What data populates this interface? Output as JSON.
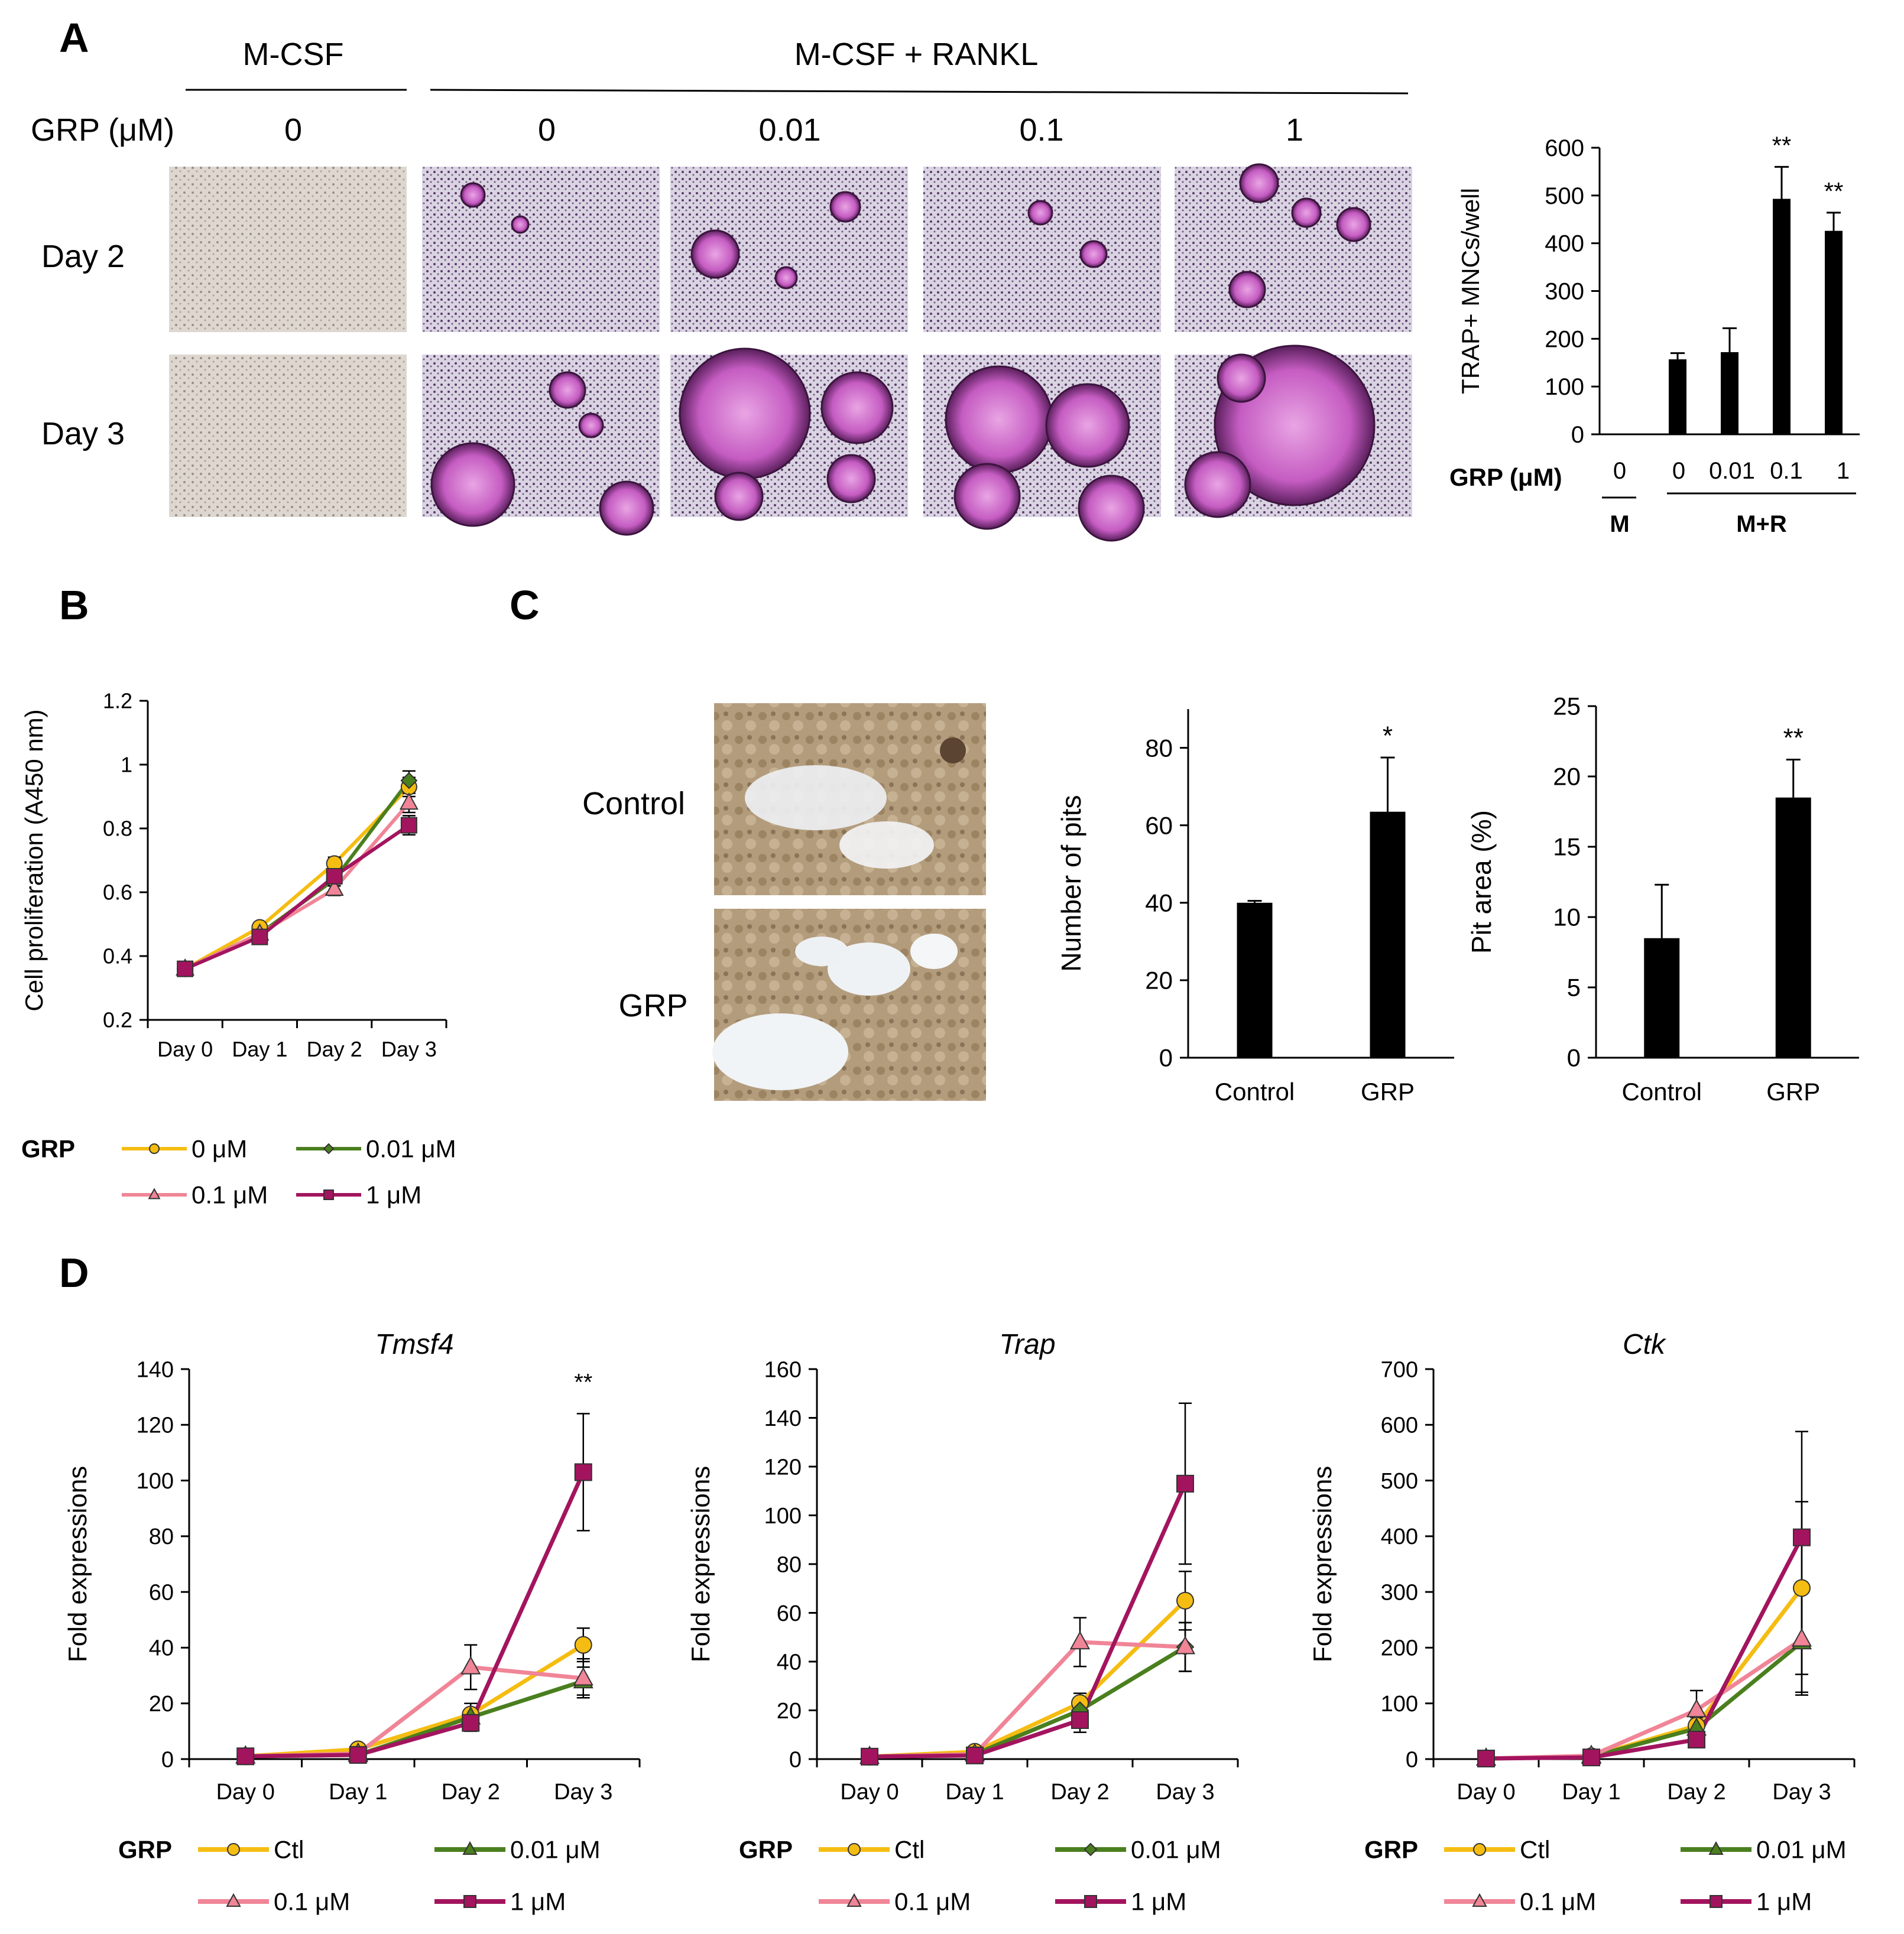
{
  "panels": {
    "A": "A",
    "B": "B",
    "C": "C",
    "D": "D"
  },
  "colors": {
    "ctl": "#f5bd12",
    "g001": "#4a7f1e",
    "g01": "#f08597",
    "g1": "#a3145e",
    "bar": "#000000",
    "photo_bg": "#ede6dc"
  },
  "panel_a": {
    "header_mcsf": "M-CSF",
    "header_mcsf_rankl": "M-CSF  + RANKL",
    "grp_label": "GRP (μM)",
    "concentrations": [
      "0",
      "0",
      "0.01",
      "0.1",
      "1"
    ],
    "rows": [
      "Day 2",
      "Day 3"
    ]
  },
  "panel_c": {
    "rows": [
      "Control",
      "GRP"
    ]
  },
  "chart_data": [
    {
      "id": "trap-mncs",
      "type": "bar",
      "categories": [
        "0",
        "0",
        "0.01",
        "0.1",
        "1"
      ],
      "values": [
        0,
        157,
        172,
        493,
        426
      ],
      "errors": [
        0,
        13,
        50,
        67,
        38
      ],
      "significance": [
        "",
        "",
        "",
        "**",
        "**"
      ],
      "ylabel": "TRAP+ MNCs/well",
      "xlabel": "GRP (μM)",
      "ylim": [
        0,
        600
      ],
      "yticks": [
        0,
        100,
        200,
        300,
        400,
        500,
        600
      ],
      "groups": [
        "M",
        "M+R"
      ]
    },
    {
      "id": "proliferation",
      "type": "line",
      "x": [
        "Day 0",
        "Day 1",
        "Day 2",
        "Day 3"
      ],
      "ylabel": "Cell proliferation (A450 nm)",
      "ylim": [
        0.2,
        1.2
      ],
      "yticks": [
        "0.2",
        "0.4",
        "0.6",
        "0.8",
        "1",
        "1.2"
      ],
      "legend_title": "GRP",
      "series": [
        {
          "name": "0 μM",
          "key": "ctl",
          "marker": "circle",
          "values": [
            0.36,
            0.49,
            0.69,
            0.93
          ],
          "errors": [
            0.01,
            0.01,
            0.02,
            0.03
          ]
        },
        {
          "name": "0.01 μM",
          "key": "g001",
          "marker": "diamond",
          "values": [
            0.36,
            0.47,
            0.64,
            0.95
          ],
          "errors": [
            0.01,
            0.01,
            0.02,
            0.03
          ]
        },
        {
          "name": "0.1 μM",
          "key": "g01",
          "marker": "triangle",
          "values": [
            0.36,
            0.47,
            0.61,
            0.88
          ],
          "errors": [
            0.01,
            0.01,
            0.02,
            0.03
          ]
        },
        {
          "name": "1 μM",
          "key": "g1",
          "marker": "square",
          "values": [
            0.36,
            0.46,
            0.65,
            0.81
          ],
          "errors": [
            0.01,
            0.01,
            0.02,
            0.03
          ]
        }
      ]
    },
    {
      "id": "pits",
      "type": "bar",
      "categories": [
        "Control",
        "GRP"
      ],
      "values": [
        40,
        63.5
      ],
      "errors": [
        0.5,
        14
      ],
      "significance": [
        "",
        "*"
      ],
      "ylabel": "Number  of pits",
      "ylim": [
        0,
        90
      ],
      "yticks": [
        0,
        20,
        40,
        60,
        80
      ]
    },
    {
      "id": "pit-area",
      "type": "bar",
      "categories": [
        "Control",
        "GRP"
      ],
      "values": [
        8.5,
        18.5
      ],
      "errors": [
        3.8,
        2.7
      ],
      "significance": [
        "",
        "**"
      ],
      "ylabel": "Pit area (%)",
      "ylim": [
        0,
        25
      ],
      "yticks": [
        0,
        5,
        10,
        15,
        20,
        25
      ]
    },
    {
      "id": "tmsf4",
      "type": "line",
      "title": "Tmsf4",
      "x": [
        "Day 0",
        "Day 1",
        "Day 2",
        "Day 3"
      ],
      "ylabel": "Fold expressions",
      "ylim": [
        0,
        140
      ],
      "yticks": [
        0,
        20,
        40,
        60,
        80,
        100,
        120,
        140
      ],
      "significance": "**",
      "legend_title": "GRP",
      "series": [
        {
          "name": "Ctl",
          "key": "ctl",
          "marker": "circle",
          "values": [
            1,
            3.5,
            16,
            41
          ],
          "errors": [
            0,
            0.5,
            4,
            6
          ]
        },
        {
          "name": "0.01 μM",
          "key": "g001",
          "marker": "triangle",
          "values": [
            1,
            1.5,
            15,
            28
          ],
          "errors": [
            0,
            0.3,
            3,
            5
          ]
        },
        {
          "name": "0.1 μM",
          "key": "g01",
          "marker": "triangle",
          "values": [
            1,
            2,
            33,
            29
          ],
          "errors": [
            0,
            0.3,
            8,
            7
          ]
        },
        {
          "name": "1 μM",
          "key": "g1",
          "marker": "square",
          "values": [
            1,
            1.5,
            13,
            103
          ],
          "errors": [
            0,
            0.3,
            3,
            21
          ]
        }
      ]
    },
    {
      "id": "trap",
      "type": "line",
      "title": "Trap",
      "x": [
        "Day 0",
        "Day 1",
        "Day 2",
        "Day 3"
      ],
      "ylabel": "Fold expressions",
      "ylim": [
        0,
        160
      ],
      "yticks": [
        0,
        20,
        40,
        60,
        80,
        100,
        120,
        140,
        160
      ],
      "legend_title": "GRP",
      "series": [
        {
          "name": "Ctl",
          "key": "ctl",
          "marker": "circle",
          "values": [
            1,
            3,
            23,
            65
          ],
          "errors": [
            0,
            0.5,
            4,
            12
          ]
        },
        {
          "name": "0.01 μM",
          "key": "g001",
          "marker": "diamond",
          "values": [
            1,
            2,
            20,
            46
          ],
          "errors": [
            0,
            0.3,
            4,
            10
          ]
        },
        {
          "name": "0.1 μM",
          "key": "g01",
          "marker": "triangle",
          "values": [
            1,
            2,
            48,
            46
          ],
          "errors": [
            0,
            0.3,
            10,
            10
          ]
        },
        {
          "name": "1 μM",
          "key": "g1",
          "marker": "square",
          "values": [
            1,
            1.5,
            16,
            113
          ],
          "errors": [
            0,
            0.3,
            5,
            33
          ]
        }
      ]
    },
    {
      "id": "ctk",
      "type": "line",
      "title": "Ctk",
      "x": [
        "Day 0",
        "Day 1",
        "Day 2",
        "Day 3"
      ],
      "ylabel": "Fold expressions",
      "ylim": [
        0,
        700
      ],
      "yticks": [
        0,
        100,
        200,
        300,
        400,
        500,
        600,
        700
      ],
      "legend_title": "GRP",
      "series": [
        {
          "name": "Ctl",
          "key": "ctl",
          "marker": "circle",
          "values": [
            1,
            5,
            60,
            307
          ],
          "errors": [
            0,
            1,
            15,
            155
          ]
        },
        {
          "name": "0.01 μM",
          "key": "g001",
          "marker": "triangle",
          "values": [
            1,
            4,
            55,
            210
          ],
          "errors": [
            0,
            1,
            15,
            90
          ]
        },
        {
          "name": "0.1 μM",
          "key": "g01",
          "marker": "triangle",
          "values": [
            1,
            6,
            88,
            215
          ],
          "errors": [
            0,
            1,
            35,
            100
          ]
        },
        {
          "name": "1 μM",
          "key": "g1",
          "marker": "square",
          "values": [
            1,
            3,
            35,
            398
          ],
          "errors": [
            0,
            1,
            10,
            190
          ]
        }
      ]
    }
  ]
}
